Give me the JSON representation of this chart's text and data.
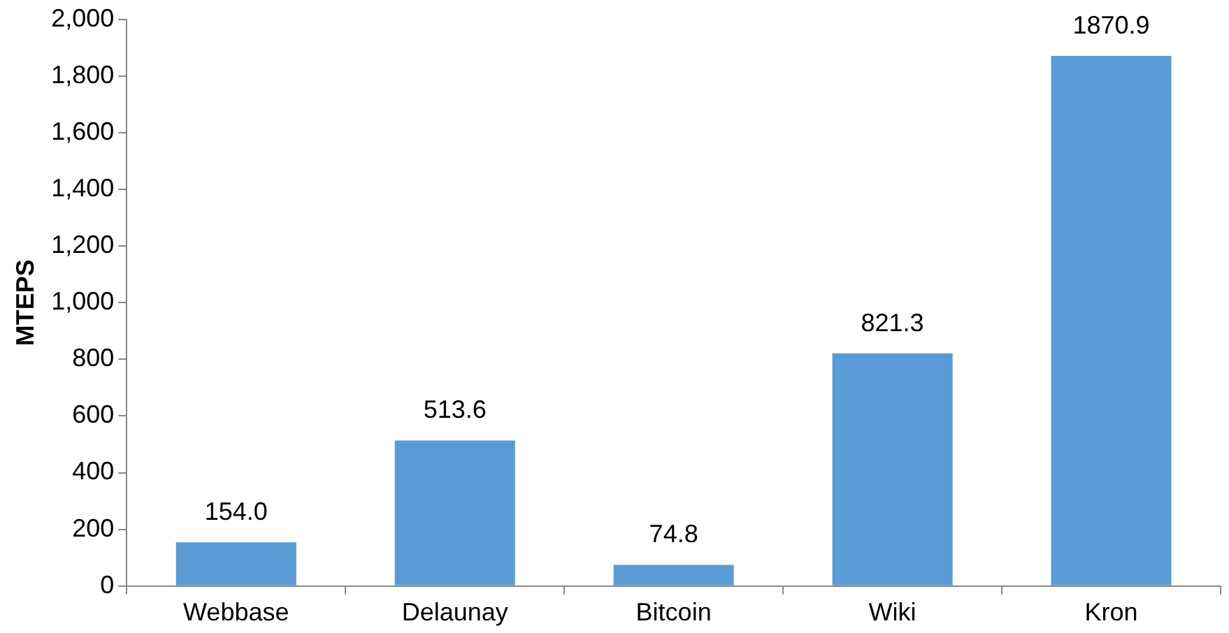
{
  "chart_data": {
    "type": "bar",
    "ylabel": "MTEPS",
    "categories": [
      "Webbase",
      "Delaunay",
      "Bitcoin",
      "Wiki",
      "Kron"
    ],
    "values": [
      154.0,
      513.6,
      74.8,
      821.3,
      1870.9
    ],
    "value_labels": [
      "154.0",
      "513.6",
      "74.8",
      "821.3",
      "1870.9"
    ],
    "color": "#5b9bd5",
    "ylim": [
      0,
      2000
    ],
    "yticks": [
      0,
      200,
      400,
      600,
      800,
      {
        "value": 1000,
        "label": "1,000"
      },
      {
        "value": 1200,
        "label": "1,200"
      },
      {
        "value": 1400,
        "label": "1,400"
      },
      {
        "value": 1600,
        "label": "1,600"
      },
      {
        "value": 1800,
        "label": "1,800"
      },
      {
        "value": 2000,
        "label": "2,000"
      }
    ],
    "grid": false,
    "legend": false
  }
}
